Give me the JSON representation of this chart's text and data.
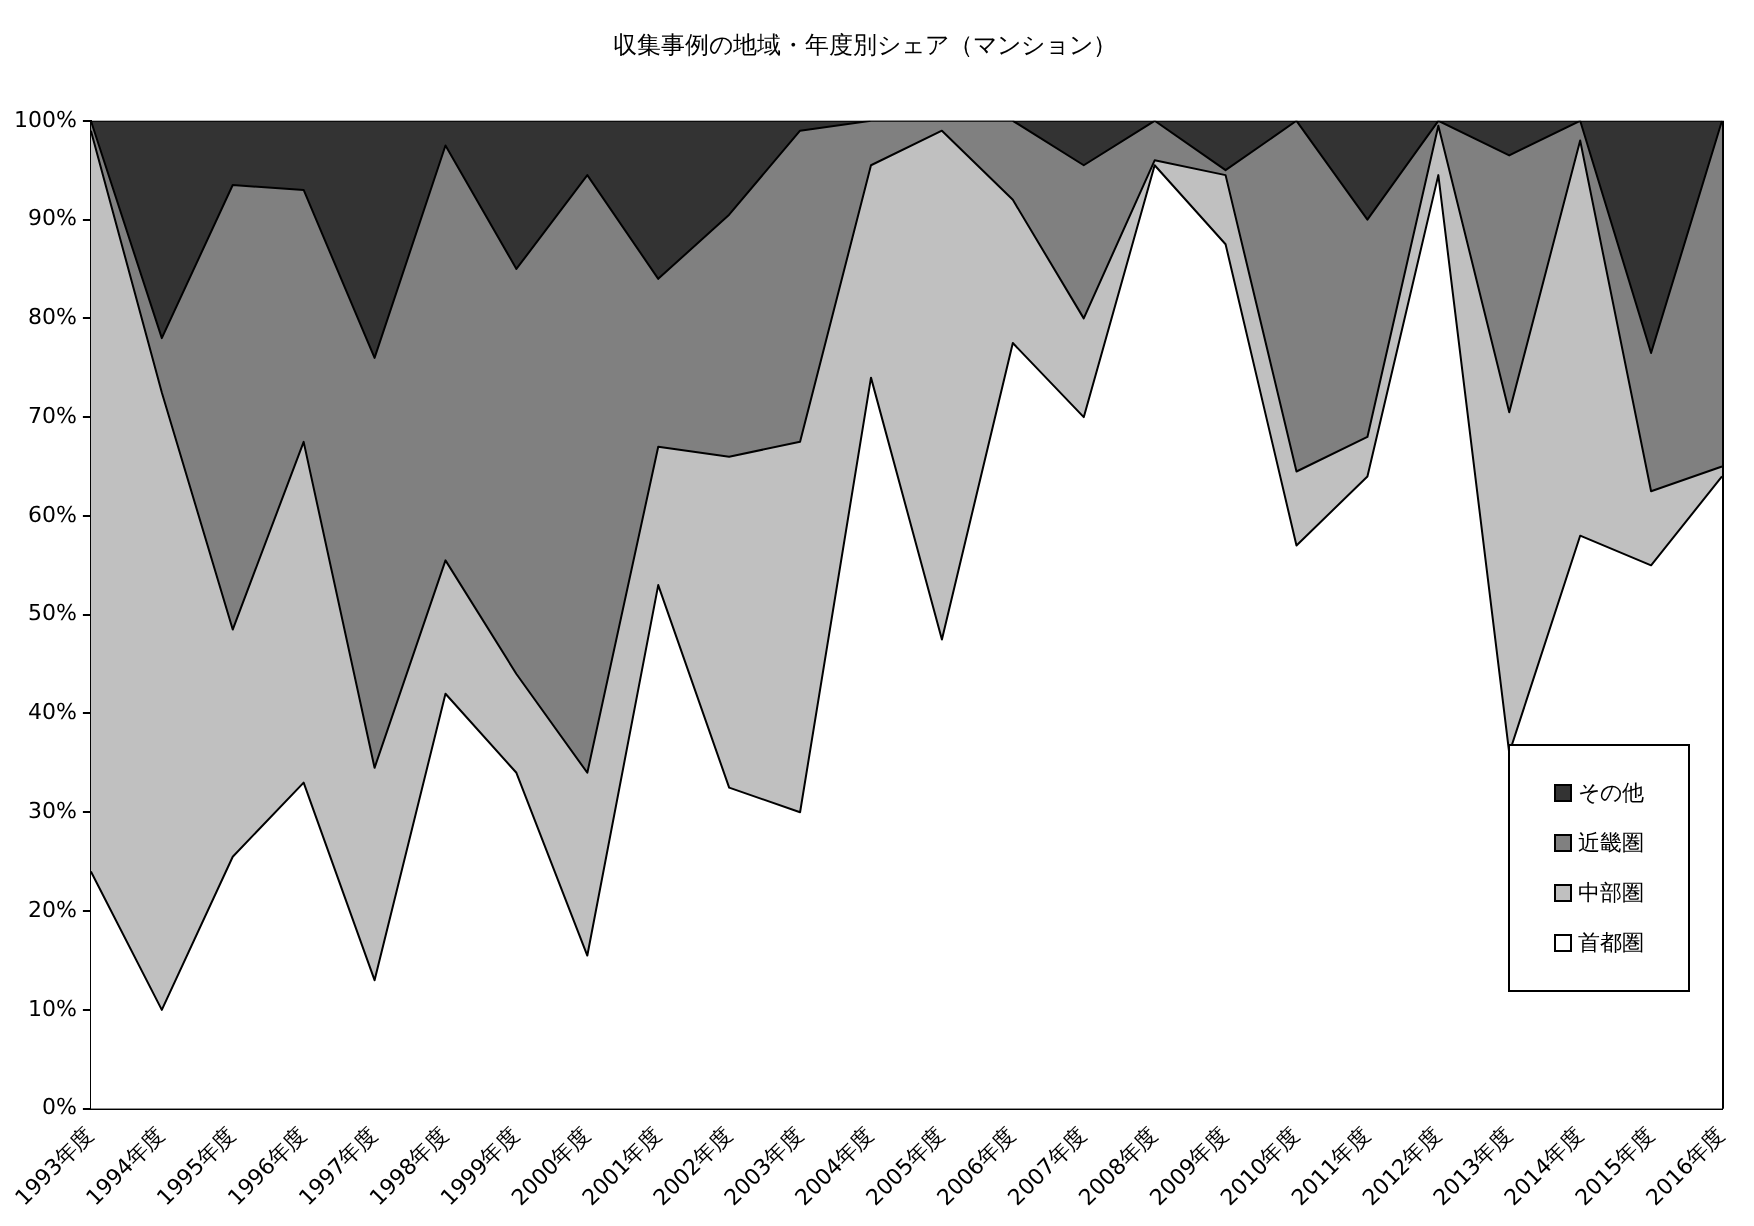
{
  "chart_data": {
    "type": "area",
    "title": "収集事例の地域・年度別シェア（マンション）",
    "categories": [
      "1993年度",
      "1994年度",
      "1995年度",
      "1996年度",
      "1997年度",
      "1998年度",
      "1999年度",
      "2000年度",
      "2001年度",
      "2002年度",
      "2003年度",
      "2004年度",
      "2005年度",
      "2006年度",
      "2007年度",
      "2008年度",
      "2009年度",
      "2010年度",
      "2011年度",
      "2012年度",
      "2013年度",
      "2014年度",
      "2015年度",
      "2016年度"
    ],
    "series": [
      {
        "name": "首都圏",
        "color": "#ffffff",
        "values": [
          24,
          10,
          25.5,
          33,
          13,
          42,
          34,
          15.5,
          53,
          32.5,
          30,
          74,
          47.5,
          77.5,
          70,
          95.5,
          87.5,
          57,
          64,
          94.5,
          36,
          58,
          55,
          64
        ]
      },
      {
        "name": "中部圏",
        "color": "#c0c0c0",
        "values": [
          75,
          62.5,
          23,
          34.5,
          21.5,
          13.5,
          10,
          18.5,
          14,
          33.5,
          37.5,
          21.5,
          51.5,
          14.5,
          10,
          0.5,
          7,
          7.5,
          4,
          5,
          34.5,
          40,
          7.5,
          1
        ]
      },
      {
        "name": "近畿圏",
        "color": "#808080",
        "values": [
          1,
          5.5,
          45,
          25.5,
          41.5,
          42,
          41,
          60.5,
          17,
          24.5,
          31.5,
          4.5,
          1,
          8,
          15.5,
          4,
          0.5,
          35.5,
          22,
          0.5,
          26,
          2,
          14,
          35
        ]
      },
      {
        "name": "その他",
        "color": "#333333",
        "values": [
          0,
          22,
          6.5,
          7,
          24,
          2.5,
          15,
          5.5,
          16,
          9.5,
          1,
          0,
          0,
          0,
          4.5,
          0,
          5,
          0,
          10,
          0,
          3.5,
          0,
          23.5,
          0
        ]
      }
    ],
    "stacked": true,
    "ylim": [
      0,
      100
    ],
    "yticks": [
      {
        "value": 0,
        "label": "0%"
      },
      {
        "value": 10,
        "label": "10%"
      },
      {
        "value": 20,
        "label": "20%"
      },
      {
        "value": 30,
        "label": "30%"
      },
      {
        "value": 40,
        "label": "40%"
      },
      {
        "value": 50,
        "label": "50%"
      },
      {
        "value": 60,
        "label": "60%"
      },
      {
        "value": 70,
        "label": "70%"
      },
      {
        "value": 80,
        "label": "80%"
      },
      {
        "value": 90,
        "label": "90%"
      },
      {
        "value": 100,
        "label": "100%"
      }
    ],
    "grid": false,
    "legend": "bottom right"
  }
}
